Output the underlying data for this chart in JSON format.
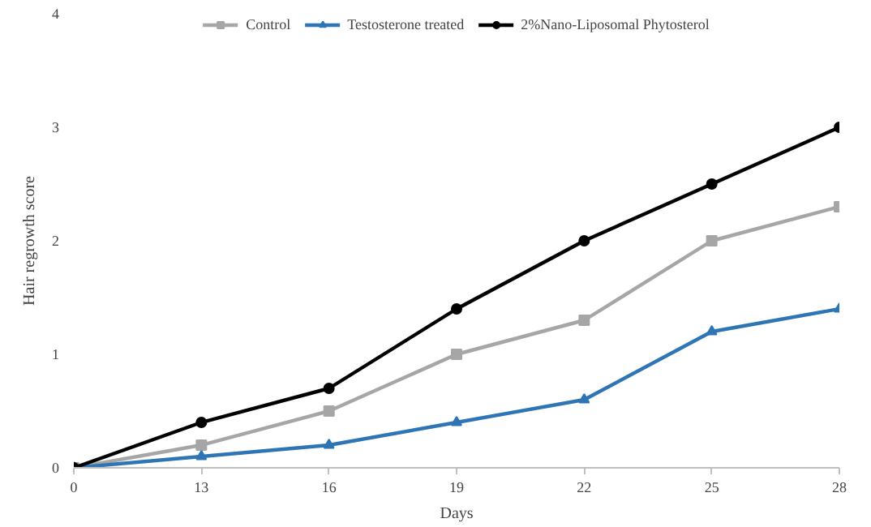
{
  "chart_data": {
    "type": "line",
    "xlabel": "Days",
    "ylabel": "Hair regrowth score",
    "categories": [
      "0",
      "13",
      "16",
      "19",
      "22",
      "25",
      "28"
    ],
    "ylim": [
      0,
      4
    ],
    "yticks": [
      0,
      1,
      2,
      3,
      4
    ],
    "grid": false,
    "legend": "top",
    "series": [
      {
        "name": "Control",
        "color": "#a6a6a6",
        "marker": "square",
        "values": [
          0,
          0.2,
          0.5,
          1.0,
          1.3,
          2.0,
          2.3
        ]
      },
      {
        "name": "Testosterone treated",
        "color": "#2e75b6",
        "marker": "triangle",
        "values": [
          0,
          0.1,
          0.2,
          0.4,
          0.6,
          1.2,
          1.4
        ]
      },
      {
        "name": "2%Nano-Liposomal Phytosterol",
        "color": "#000000",
        "marker": "circle",
        "values": [
          0,
          0.4,
          0.7,
          1.4,
          2.0,
          2.5,
          3.0
        ]
      }
    ]
  }
}
